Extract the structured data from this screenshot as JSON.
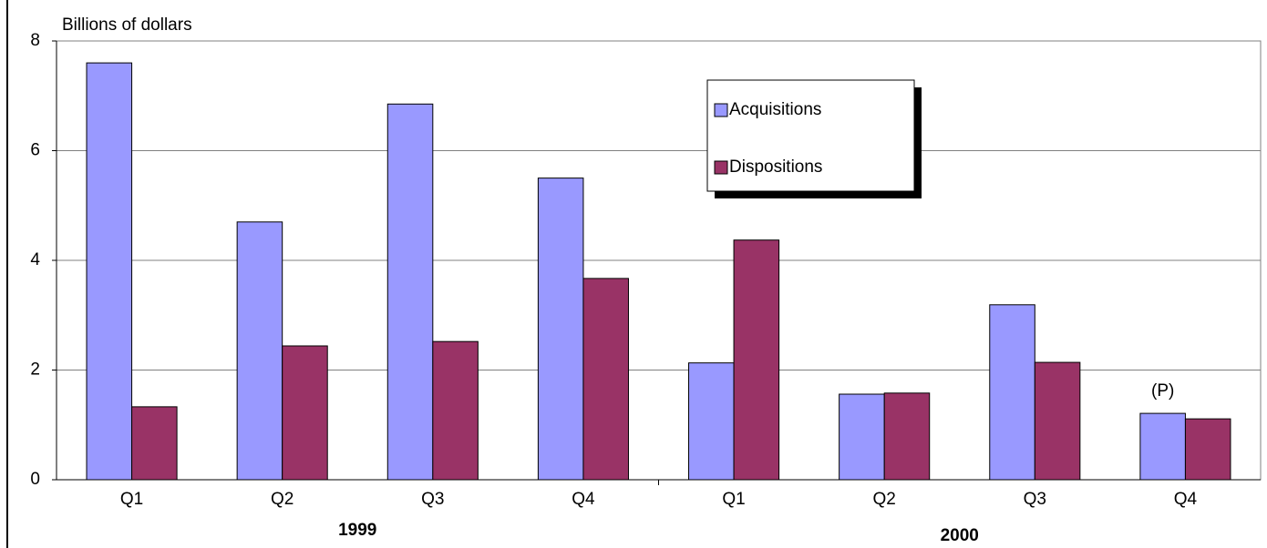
{
  "chart_data": {
    "type": "bar",
    "y_axis_label": "Billions of dollars",
    "categories": [
      "Q1",
      "Q2",
      "Q3",
      "Q4",
      "Q1",
      "Q2",
      "Q3",
      "Q4"
    ],
    "groups": [
      "1999",
      "2000"
    ],
    "series": [
      {
        "name": "Acquisitions",
        "color": "#9999ff",
        "values": [
          7.6,
          4.7,
          6.85,
          5.5,
          2.13,
          1.56,
          3.19,
          1.21
        ]
      },
      {
        "name": "Dispositions",
        "color": "#993366",
        "values": [
          1.33,
          2.44,
          2.52,
          3.67,
          4.37,
          1.58,
          2.14,
          1.11
        ]
      }
    ],
    "annotations": [
      "(P)"
    ],
    "ylim": [
      0,
      8
    ],
    "yticks": [
      0,
      2,
      4,
      6,
      8
    ],
    "grid": true
  }
}
